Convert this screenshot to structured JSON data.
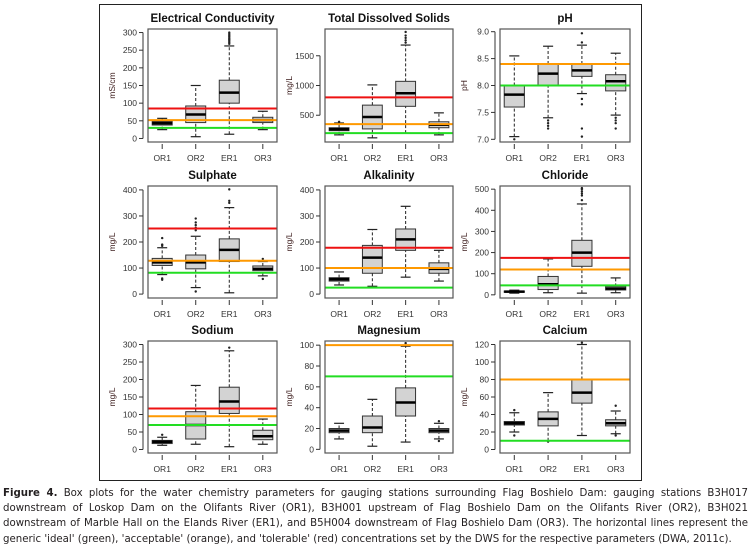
{
  "chart_data": [
    {
      "type": "box",
      "title": "Electrical Conductivity",
      "ylabel": "mS/cm",
      "categories": [
        "OR1",
        "OR2",
        "ER1",
        "OR3"
      ],
      "ylim": [
        -10,
        310
      ],
      "yticks": [
        0,
        50,
        100,
        150,
        200,
        250,
        300
      ],
      "boxes": [
        {
          "whisker_low": 25,
          "q1": 38,
          "median": 43,
          "q3": 48,
          "whisker_high": 57,
          "outliers": []
        },
        {
          "whisker_low": 5,
          "q1": 45,
          "median": 68,
          "q3": 92,
          "whisker_high": 150,
          "outliers": []
        },
        {
          "whisker_low": 12,
          "q1": 100,
          "median": 130,
          "q3": 165,
          "whisker_high": 262,
          "outliers": [
            268,
            272,
            276,
            280,
            284,
            288,
            292,
            296,
            300
          ]
        },
        {
          "whisker_low": 25,
          "q1": 45,
          "median": 52,
          "q3": 60,
          "whisker_high": 77,
          "outliers": []
        }
      ],
      "guidelines": {
        "ideal": 30,
        "acceptable": 52,
        "tolerable": 85
      }
    },
    {
      "type": "box",
      "title": "Total Dissolved Solids",
      "ylabel": "mg/L",
      "categories": [
        "OR1",
        "OR2",
        "ER1",
        "OR3"
      ],
      "ylim": [
        50,
        1950
      ],
      "yticks": [
        500,
        1000,
        1500
      ],
      "boxes": [
        {
          "whisker_low": 170,
          "q1": 240,
          "median": 265,
          "q3": 290,
          "whisker_high": 370,
          "outliers": [
            390
          ]
        },
        {
          "whisker_low": 120,
          "q1": 270,
          "median": 470,
          "q3": 670,
          "whisker_high": 1010,
          "outliers": []
        },
        {
          "whisker_low": 200,
          "q1": 650,
          "median": 870,
          "q3": 1070,
          "whisker_high": 1680,
          "outliers": [
            1720,
            1760,
            1800,
            1840,
            1900
          ]
        },
        {
          "whisker_low": 170,
          "q1": 290,
          "median": 340,
          "q3": 390,
          "whisker_high": 540,
          "outliers": []
        }
      ],
      "guidelines": {
        "ideal": 200,
        "acceptable": 350,
        "tolerable": 800
      }
    },
    {
      "type": "box",
      "title": "pH",
      "ylabel": "pH",
      "categories": [
        "OR1",
        "OR2",
        "ER1",
        "OR3"
      ],
      "ylim": [
        6.95,
        9.05
      ],
      "yticks": [
        7.0,
        7.5,
        8.0,
        8.5,
        9.0
      ],
      "boxes": [
        {
          "whisker_low": 7.05,
          "q1": 7.6,
          "median": 7.83,
          "q3": 8.0,
          "whisker_high": 8.55,
          "outliers": [
            7.0
          ]
        },
        {
          "whisker_low": 7.4,
          "q1": 8.0,
          "median": 8.22,
          "q3": 8.4,
          "whisker_high": 8.73,
          "outliers": [
            7.35,
            7.3,
            7.25,
            7.2
          ]
        },
        {
          "whisker_low": 7.85,
          "q1": 8.17,
          "median": 8.28,
          "q3": 8.4,
          "whisker_high": 8.75,
          "outliers": [
            7.75,
            7.65,
            7.2,
            7.05,
            8.8,
            8.97
          ]
        },
        {
          "whisker_low": 7.45,
          "q1": 7.9,
          "median": 8.08,
          "q3": 8.2,
          "whisker_high": 8.6,
          "outliers": [
            7.4,
            7.35,
            7.3,
            7.2
          ]
        }
      ],
      "guidelines": {
        "ideal": 8.0,
        "acceptable": 8.4
      }
    },
    {
      "type": "box",
      "title": "Sulphate",
      "ylabel": "mg/L",
      "categories": [
        "OR1",
        "OR2",
        "ER1",
        "OR3"
      ],
      "ylim": [
        -15,
        415
      ],
      "yticks": [
        0,
        100,
        200,
        300,
        400
      ],
      "boxes": [
        {
          "whisker_low": 75,
          "q1": 110,
          "median": 122,
          "q3": 137,
          "whisker_high": 178,
          "outliers": [
            60,
            55,
            185,
            190,
            215
          ]
        },
        {
          "whisker_low": 25,
          "q1": 97,
          "median": 122,
          "q3": 150,
          "whisker_high": 222,
          "outliers": [
            10,
            245,
            255,
            265,
            275,
            290
          ]
        },
        {
          "whisker_low": 5,
          "q1": 125,
          "median": 170,
          "q3": 212,
          "whisker_high": 332,
          "outliers": [
            350,
            358,
            402
          ]
        },
        {
          "whisker_low": 70,
          "q1": 90,
          "median": 97,
          "q3": 108,
          "whisker_high": 125,
          "outliers": [
            58,
            135
          ]
        }
      ],
      "guidelines": {
        "ideal": 82,
        "acceptable": 128,
        "tolerable": 252
      }
    },
    {
      "type": "box",
      "title": "Alkalinity",
      "ylabel": "mg/L",
      "categories": [
        "OR1",
        "OR2",
        "ER1",
        "OR3"
      ],
      "ylim": [
        -15,
        415
      ],
      "yticks": [
        0,
        100,
        200,
        300,
        400
      ],
      "boxes": [
        {
          "whisker_low": 35,
          "q1": 50,
          "median": 57,
          "q3": 63,
          "whisker_high": 85,
          "outliers": []
        },
        {
          "whisker_low": 30,
          "q1": 80,
          "median": 140,
          "q3": 187,
          "whisker_high": 248,
          "outliers": []
        },
        {
          "whisker_low": 65,
          "q1": 168,
          "median": 210,
          "q3": 250,
          "whisker_high": 337,
          "outliers": []
        },
        {
          "whisker_low": 50,
          "q1": 80,
          "median": 97,
          "q3": 120,
          "whisker_high": 168,
          "outliers": []
        }
      ],
      "guidelines": {
        "ideal": 25,
        "acceptable": 100,
        "tolerable": 178
      }
    },
    {
      "type": "box",
      "title": "Chloride",
      "ylabel": "mg/L",
      "categories": [
        "OR1",
        "OR2",
        "ER1",
        "OR3"
      ],
      "ylim": [
        -15,
        515
      ],
      "yticks": [
        0,
        100,
        200,
        300,
        400,
        500
      ],
      "boxes": [
        {
          "whisker_low": 8,
          "q1": 12,
          "median": 15,
          "q3": 18,
          "whisker_high": 22,
          "outliers": []
        },
        {
          "whisker_low": 10,
          "q1": 25,
          "median": 50,
          "q3": 87,
          "whisker_high": 170,
          "outliers": []
        },
        {
          "whisker_low": 8,
          "q1": 135,
          "median": 200,
          "q3": 258,
          "whisker_high": 430,
          "outliers": [
            448,
            470,
            480,
            490,
            500,
            505
          ]
        },
        {
          "whisker_low": 10,
          "q1": 23,
          "median": 30,
          "q3": 40,
          "whisker_high": 80,
          "outliers": []
        }
      ],
      "guidelines": {
        "ideal": 45,
        "acceptable": 120,
        "tolerable": 175
      }
    },
    {
      "type": "box",
      "title": "Sodium",
      "ylabel": "mg/L",
      "categories": [
        "OR1",
        "OR2",
        "ER1",
        "OR3"
      ],
      "ylim": [
        -10,
        310
      ],
      "yticks": [
        0,
        50,
        100,
        150,
        200,
        250,
        300
      ],
      "boxes": [
        {
          "whisker_low": 12,
          "q1": 17,
          "median": 22,
          "q3": 26,
          "whisker_high": 35,
          "outliers": [
            42
          ]
        },
        {
          "whisker_low": 15,
          "q1": 30,
          "median": 70,
          "q3": 108,
          "whisker_high": 183,
          "outliers": []
        },
        {
          "whisker_low": 8,
          "q1": 103,
          "median": 137,
          "q3": 178,
          "whisker_high": 282,
          "outliers": [
            291
          ]
        },
        {
          "whisker_low": 15,
          "q1": 28,
          "median": 38,
          "q3": 55,
          "whisker_high": 87,
          "outliers": []
        }
      ],
      "guidelines": {
        "ideal": 70,
        "acceptable": 95,
        "tolerable": 117
      }
    },
    {
      "type": "box",
      "title": "Magnesium",
      "ylabel": "mg/L",
      "categories": [
        "OR1",
        "OR2",
        "ER1",
        "OR3"
      ],
      "ylim": [
        -3.5,
        104
      ],
      "yticks": [
        0,
        20,
        40,
        60,
        80,
        100
      ],
      "boxes": [
        {
          "whisker_low": 10,
          "q1": 16,
          "median": 18,
          "q3": 20,
          "whisker_high": 25,
          "outliers": []
        },
        {
          "whisker_low": 3,
          "q1": 16,
          "median": 21,
          "q3": 32,
          "whisker_high": 48,
          "outliers": []
        },
        {
          "whisker_low": 7,
          "q1": 32,
          "median": 45,
          "q3": 59,
          "whisker_high": 99,
          "outliers": [
            102
          ]
        },
        {
          "whisker_low": 10,
          "q1": 16,
          "median": 18,
          "q3": 20,
          "whisker_high": 25,
          "outliers": [
            8,
            27
          ]
        }
      ],
      "guidelines": {
        "ideal": 70,
        "acceptable": 100
      }
    },
    {
      "type": "box",
      "title": "Calcium",
      "ylabel": "mg/L",
      "categories": [
        "OR1",
        "OR2",
        "ER1",
        "OR3"
      ],
      "ylim": [
        -4,
        124
      ],
      "yticks": [
        0,
        20,
        40,
        60,
        80,
        100,
        120
      ],
      "boxes": [
        {
          "whisker_low": 20,
          "q1": 28,
          "median": 30,
          "q3": 32,
          "whisker_high": 42,
          "outliers": [
            16,
            45
          ]
        },
        {
          "whisker_low": 10,
          "q1": 27,
          "median": 35,
          "q3": 43,
          "whisker_high": 65,
          "outliers": [
            9
          ]
        },
        {
          "whisker_low": 16,
          "q1": 53,
          "median": 65,
          "q3": 80,
          "whisker_high": 120,
          "outliers": [
            122
          ]
        },
        {
          "whisker_low": 18,
          "q1": 27,
          "median": 30,
          "q3": 34,
          "whisker_high": 44,
          "outliers": [
            16,
            50
          ]
        }
      ],
      "guidelines": {
        "ideal": 10,
        "acceptable": 80
      }
    }
  ],
  "guideline_colors": {
    "ideal": "#22dd22",
    "acceptable": "#ff9900",
    "tolerable": "#ee1111"
  },
  "box_fill": "#d3d3d3",
  "caption": {
    "label": "Figure 4.",
    "text": " Box plots for the water chemistry parameters for gauging stations surrounding Flag Boshielo Dam: gauging stations B3H017 downstream of Loskop Dam on the Olifants River (OR1), B3H001 upstream of Flag Boshielo Dam on the Olifants River (OR2), B3H021 downstream of Marble Hall on the Elands River (ER1), and B5H004 downstream of Flag Boshielo Dam (OR3). The horizontal lines represent the generic 'ideal' (green), 'acceptable' (orange), and 'tolerable' (red) concentrations set by the DWS for the respective parameters (DWA, 2011c)."
  }
}
